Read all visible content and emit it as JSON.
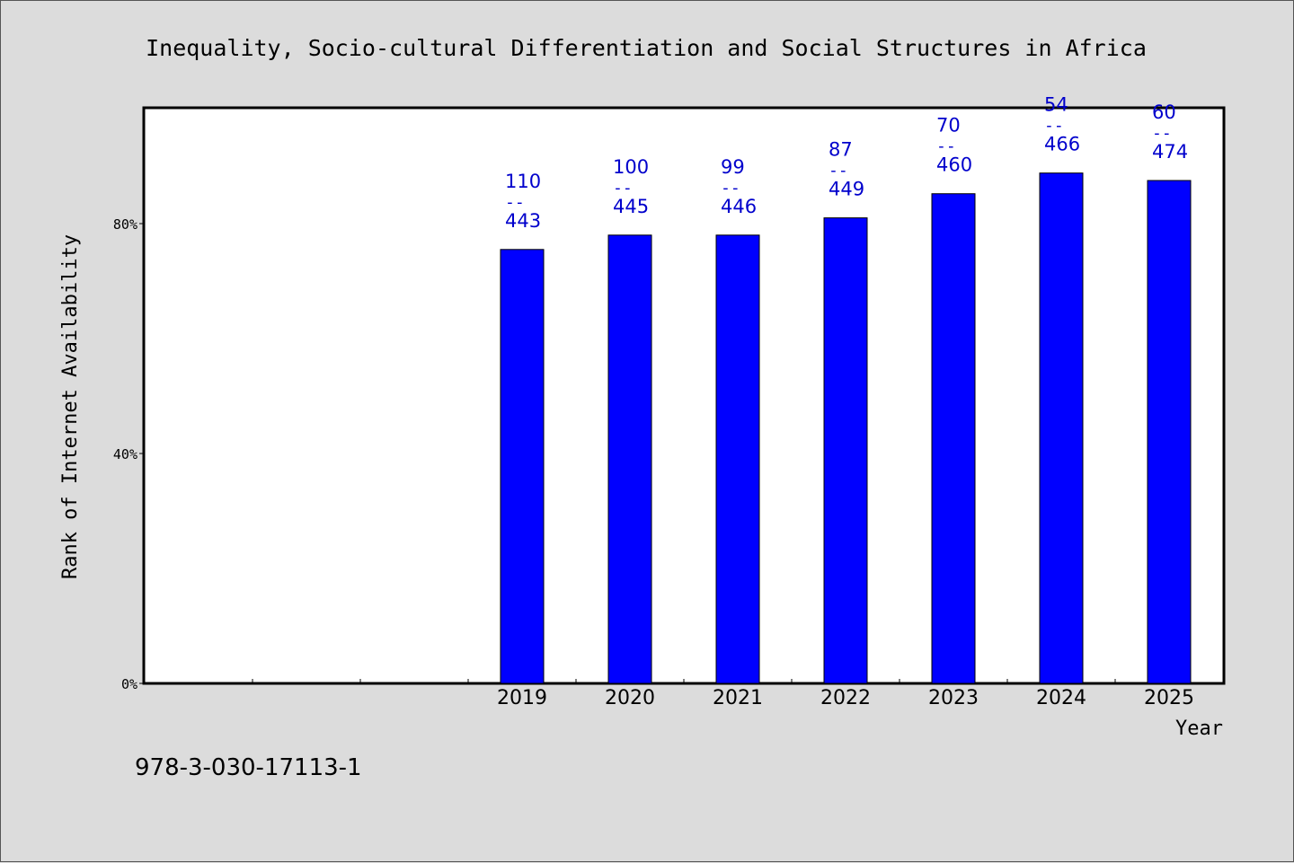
{
  "chart_data": {
    "type": "bar",
    "title": "Inequality, Socio-cultural Differentiation and Social Structures in Africa",
    "xlabel": "Year",
    "ylabel": "Rank of Internet Availability",
    "categories": [
      "",
      "",
      "",
      "2019",
      "2020",
      "2021",
      "2022",
      "2023",
      "2024",
      "2025"
    ],
    "values": [
      null,
      null,
      null,
      75.5,
      78,
      78,
      81,
      85.2,
      88.8,
      87.5
    ],
    "bar_labels": [
      null,
      null,
      null,
      {
        "top": "110",
        "sep": "--",
        "bottom": "443"
      },
      {
        "top": "100",
        "sep": "--",
        "bottom": "445"
      },
      {
        "top": "99",
        "sep": "--",
        "bottom": "446"
      },
      {
        "top": "87",
        "sep": "--",
        "bottom": "449"
      },
      {
        "top": "70",
        "sep": "--",
        "bottom": "460"
      },
      {
        "top": "54",
        "sep": "--",
        "bottom": "466"
      },
      {
        "top": "60",
        "sep": "--",
        "bottom": "474"
      }
    ],
    "yticks": [
      {
        "value": 0,
        "label": "0%"
      },
      {
        "value": 40,
        "label": "40%"
      },
      {
        "value": 80,
        "label": "80%"
      }
    ],
    "ylim": [
      0,
      100
    ],
    "grid": false,
    "legend": false
  },
  "footer": {
    "isbn": "978-3-030-17113-1"
  },
  "colors": {
    "bar": "#0000ff",
    "label": "#0000cc",
    "background": "#dcdcdc",
    "plot": "#ffffff"
  }
}
